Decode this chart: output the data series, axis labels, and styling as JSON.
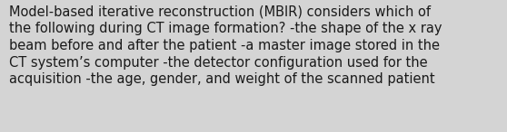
{
  "lines": [
    "Model-based iterative reconstruction (MBIR) considers which of",
    "the following during CT image formation? -the shape of the x ray",
    "beam before and after the patient -a master image stored in the",
    "CT system’s computer -the detector configuration used for the",
    "acquisition -the age, gender, and weight of the scanned patient"
  ],
  "background_color": "#d4d4d4",
  "text_color": "#1a1a1a",
  "font_size": 10.5,
  "fig_width": 5.58,
  "fig_height": 1.46,
  "dpi": 100
}
